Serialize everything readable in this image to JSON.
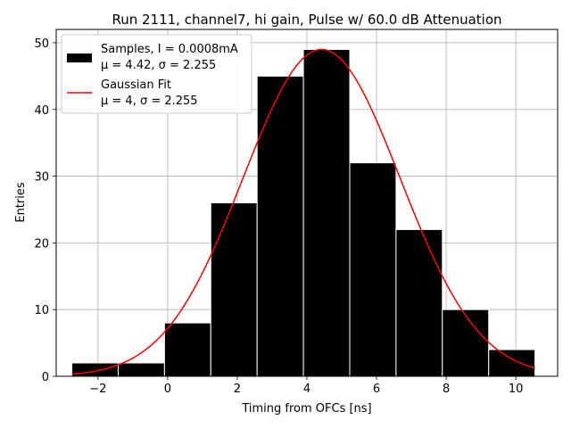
{
  "chart_data": {
    "type": "bar",
    "title": "Run 2111, channel7, hi gain, Pulse w/ 60.0 dB Attenuation",
    "xlabel": "Timing from OFCs [ns]",
    "ylabel": "Entries",
    "xlim": [
      -3.2,
      11.2
    ],
    "ylim": [
      0,
      52
    ],
    "xticks": [
      -2,
      0,
      2,
      4,
      6,
      8,
      10
    ],
    "xtick_labels": [
      "−2",
      "0",
      "2",
      "4",
      "6",
      "8",
      "10"
    ],
    "yticks": [
      0,
      10,
      20,
      30,
      40,
      50
    ],
    "ytick_labels": [
      "0",
      "10",
      "20",
      "30",
      "40",
      "50"
    ],
    "grid": true,
    "legend_position": "top-left",
    "histogram": {
      "bin_edges": [
        -2.75,
        -1.42,
        -0.09,
        1.24,
        2.57,
        3.9,
        5.23,
        6.56,
        7.89,
        9.22,
        10.55
      ],
      "counts": [
        2,
        2,
        8,
        26,
        45,
        49,
        32,
        22,
        10,
        4
      ],
      "color": "#000000",
      "edge_color": "#ffffff"
    },
    "fit": {
      "type": "gaussian",
      "mu": 4.42,
      "sigma": 2.255,
      "amplitude": 49,
      "x_range": [
        -2.75,
        10.55
      ],
      "color": "#ff0000"
    },
    "legend": [
      {
        "marker": "box",
        "line1": "Samples, I = 0.0008mA",
        "line2": "μ = 4.42, σ = 2.255"
      },
      {
        "marker": "line",
        "line1": "Gaussian Fit",
        "line2": "μ = 4, σ = 2.255"
      }
    ]
  }
}
